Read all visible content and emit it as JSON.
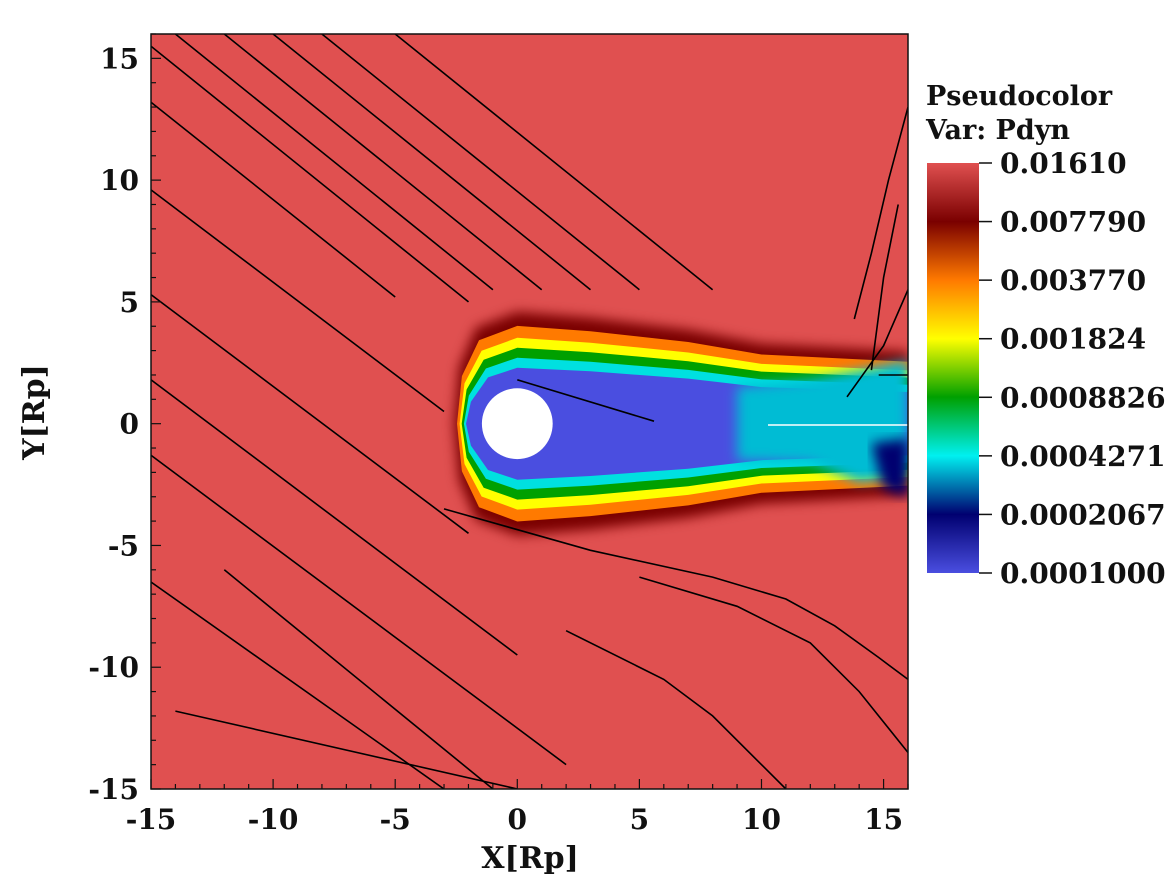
{
  "chart_data": {
    "type": "heatmap",
    "plot_kind": "pseudocolor with streamlines",
    "xlabel": "X[Rp]",
    "ylabel": "Y[Rp]",
    "xlim": [
      -15,
      16
    ],
    "ylim": [
      -15,
      16
    ],
    "x_ticks": [
      -15,
      -10,
      -5,
      0,
      5,
      10,
      15
    ],
    "x_tick_labels": [
      "-15",
      "-10",
      "-5",
      "0",
      "5",
      "10",
      "15"
    ],
    "y_ticks": [
      -15,
      -10,
      -5,
      0,
      5,
      10,
      15
    ],
    "y_tick_labels": [
      "-15",
      "-10",
      "-5",
      "0",
      "5",
      "10",
      "15"
    ],
    "legend": {
      "title_line1": "Pseudocolor",
      "title_line2": "Var: Pdyn",
      "placement": "right",
      "scale": "log",
      "min": 0.0001,
      "max": 0.0161,
      "ticks": [
        0.0161,
        0.00779,
        0.00377,
        0.001824,
        0.0008826,
        0.0004271,
        0.0002067,
        0.0001
      ],
      "tick_labels": [
        "0.01610",
        "0.007790",
        "0.003770",
        "0.001824",
        "0.0008826",
        "0.0004271",
        "0.0002067",
        "0.0001000"
      ],
      "colors": [
        "#e05050",
        "#7a0000",
        "#ff7a00",
        "#ffff00",
        "#00a000",
        "#00f0f0",
        "#000070",
        "#4a4ee0"
      ]
    },
    "obstacle": {
      "shape": "circle",
      "center": [
        0,
        0
      ],
      "radius": 1.45,
      "color": "#ffffff"
    },
    "field": {
      "background_color": "#e05050",
      "bands": [
        {
          "name": "wake-core",
          "color": "#4a4ee0",
          "outline": [
            [
              -2.1,
              0
            ],
            [
              -1.9,
              0.9
            ],
            [
              -1.2,
              1.9
            ],
            [
              0,
              2.3
            ],
            [
              3,
              2.15
            ],
            [
              7,
              1.85
            ],
            [
              10,
              1.5
            ],
            [
              16,
              1.3
            ],
            [
              16,
              -1.3
            ],
            [
              10,
              -1.5
            ],
            [
              7,
              -1.85
            ],
            [
              3,
              -2.15
            ],
            [
              0,
              -2.3
            ],
            [
              -1.2,
              -1.9
            ],
            [
              -1.9,
              -0.9
            ]
          ]
        },
        {
          "name": "cyan-tail",
          "color": "#00bcd4",
          "outline": [
            [
              9,
              1.5
            ],
            [
              12,
              1.8
            ],
            [
              14,
              2.2
            ],
            [
              16,
              2.6
            ],
            [
              16,
              -2.2
            ],
            [
              14,
              -2.4
            ],
            [
              12,
              -1.6
            ],
            [
              9,
              -1.5
            ]
          ]
        },
        {
          "name": "dark-tail",
          "color": "#000070",
          "outline": [
            [
              14.5,
              -0.8
            ],
            [
              16,
              -0.6
            ],
            [
              16,
              -3.0
            ],
            [
              15,
              -2.7
            ]
          ]
        }
      ],
      "sheath_layers": [
        {
          "color": "#7a0000",
          "offset": 1.4
        },
        {
          "color": "#ff7a00",
          "offset": 1.05
        },
        {
          "color": "#ffff00",
          "offset": 0.75
        },
        {
          "color": "#00a000",
          "offset": 0.5
        },
        {
          "color": "#00e0e0",
          "offset": 0.25
        }
      ]
    },
    "streamlines": [
      {
        "x": [
          -15,
          -5
        ],
        "y": [
          13.2,
          5.2
        ]
      },
      {
        "x": [
          -15,
          -2
        ],
        "y": [
          15.5,
          5.0
        ]
      },
      {
        "x": [
          -14,
          -1
        ],
        "y": [
          16,
          5.5
        ]
      },
      {
        "x": [
          -12,
          1
        ],
        "y": [
          16,
          5.5
        ]
      },
      {
        "x": [
          -10,
          3
        ],
        "y": [
          16,
          5.5
        ]
      },
      {
        "x": [
          -8,
          5
        ],
        "y": [
          16,
          5.5
        ]
      },
      {
        "x": [
          -5,
          8
        ],
        "y": [
          16,
          5.5
        ]
      },
      {
        "x": [
          -15,
          -3
        ],
        "y": [
          9.6,
          0.5
        ]
      },
      {
        "x": [
          -15,
          -2
        ],
        "y": [
          5.3,
          -4.5
        ]
      },
      {
        "x": [
          -15,
          0
        ],
        "y": [
          1.8,
          -9.5
        ]
      },
      {
        "x": [
          -15,
          2
        ],
        "y": [
          -1.3,
          -14
        ]
      },
      {
        "x": [
          -15,
          -3
        ],
        "y": [
          -6.5,
          -15
        ]
      },
      {
        "x": [
          -12,
          -1
        ],
        "y": [
          -6,
          -15
        ]
      },
      {
        "x": [
          -14,
          0
        ],
        "y": [
          -11.8,
          -15
        ]
      },
      {
        "x": [
          5.6,
          0
        ],
        "y": [
          0.1,
          1.8
        ]
      },
      {
        "x": [
          -3,
          3,
          8,
          11,
          13,
          14.8,
          16
        ],
        "y": [
          -3.5,
          -5.2,
          -6.3,
          -7.2,
          -8.3,
          -9.6,
          -10.5
        ]
      },
      {
        "x": [
          5,
          9,
          12,
          14,
          16
        ],
        "y": [
          -6.3,
          -7.5,
          -9,
          -11,
          -13.5
        ]
      },
      {
        "x": [
          2,
          6,
          8,
          11
        ],
        "y": [
          -8.5,
          -10.5,
          -12,
          -15
        ]
      },
      {
        "x": [
          13.8,
          14.5,
          15.2,
          16
        ],
        "y": [
          4.3,
          7,
          10,
          13
        ]
      },
      {
        "x": [
          14.5,
          15,
          15.6
        ],
        "y": [
          2.2,
          6,
          9
        ]
      },
      {
        "x": [
          14.8,
          15.2,
          16
        ],
        "y": [
          2,
          2,
          2
        ]
      },
      {
        "x": [
          13.5,
          15,
          16
        ],
        "y": [
          1.1,
          3.2,
          5.5
        ]
      }
    ]
  }
}
